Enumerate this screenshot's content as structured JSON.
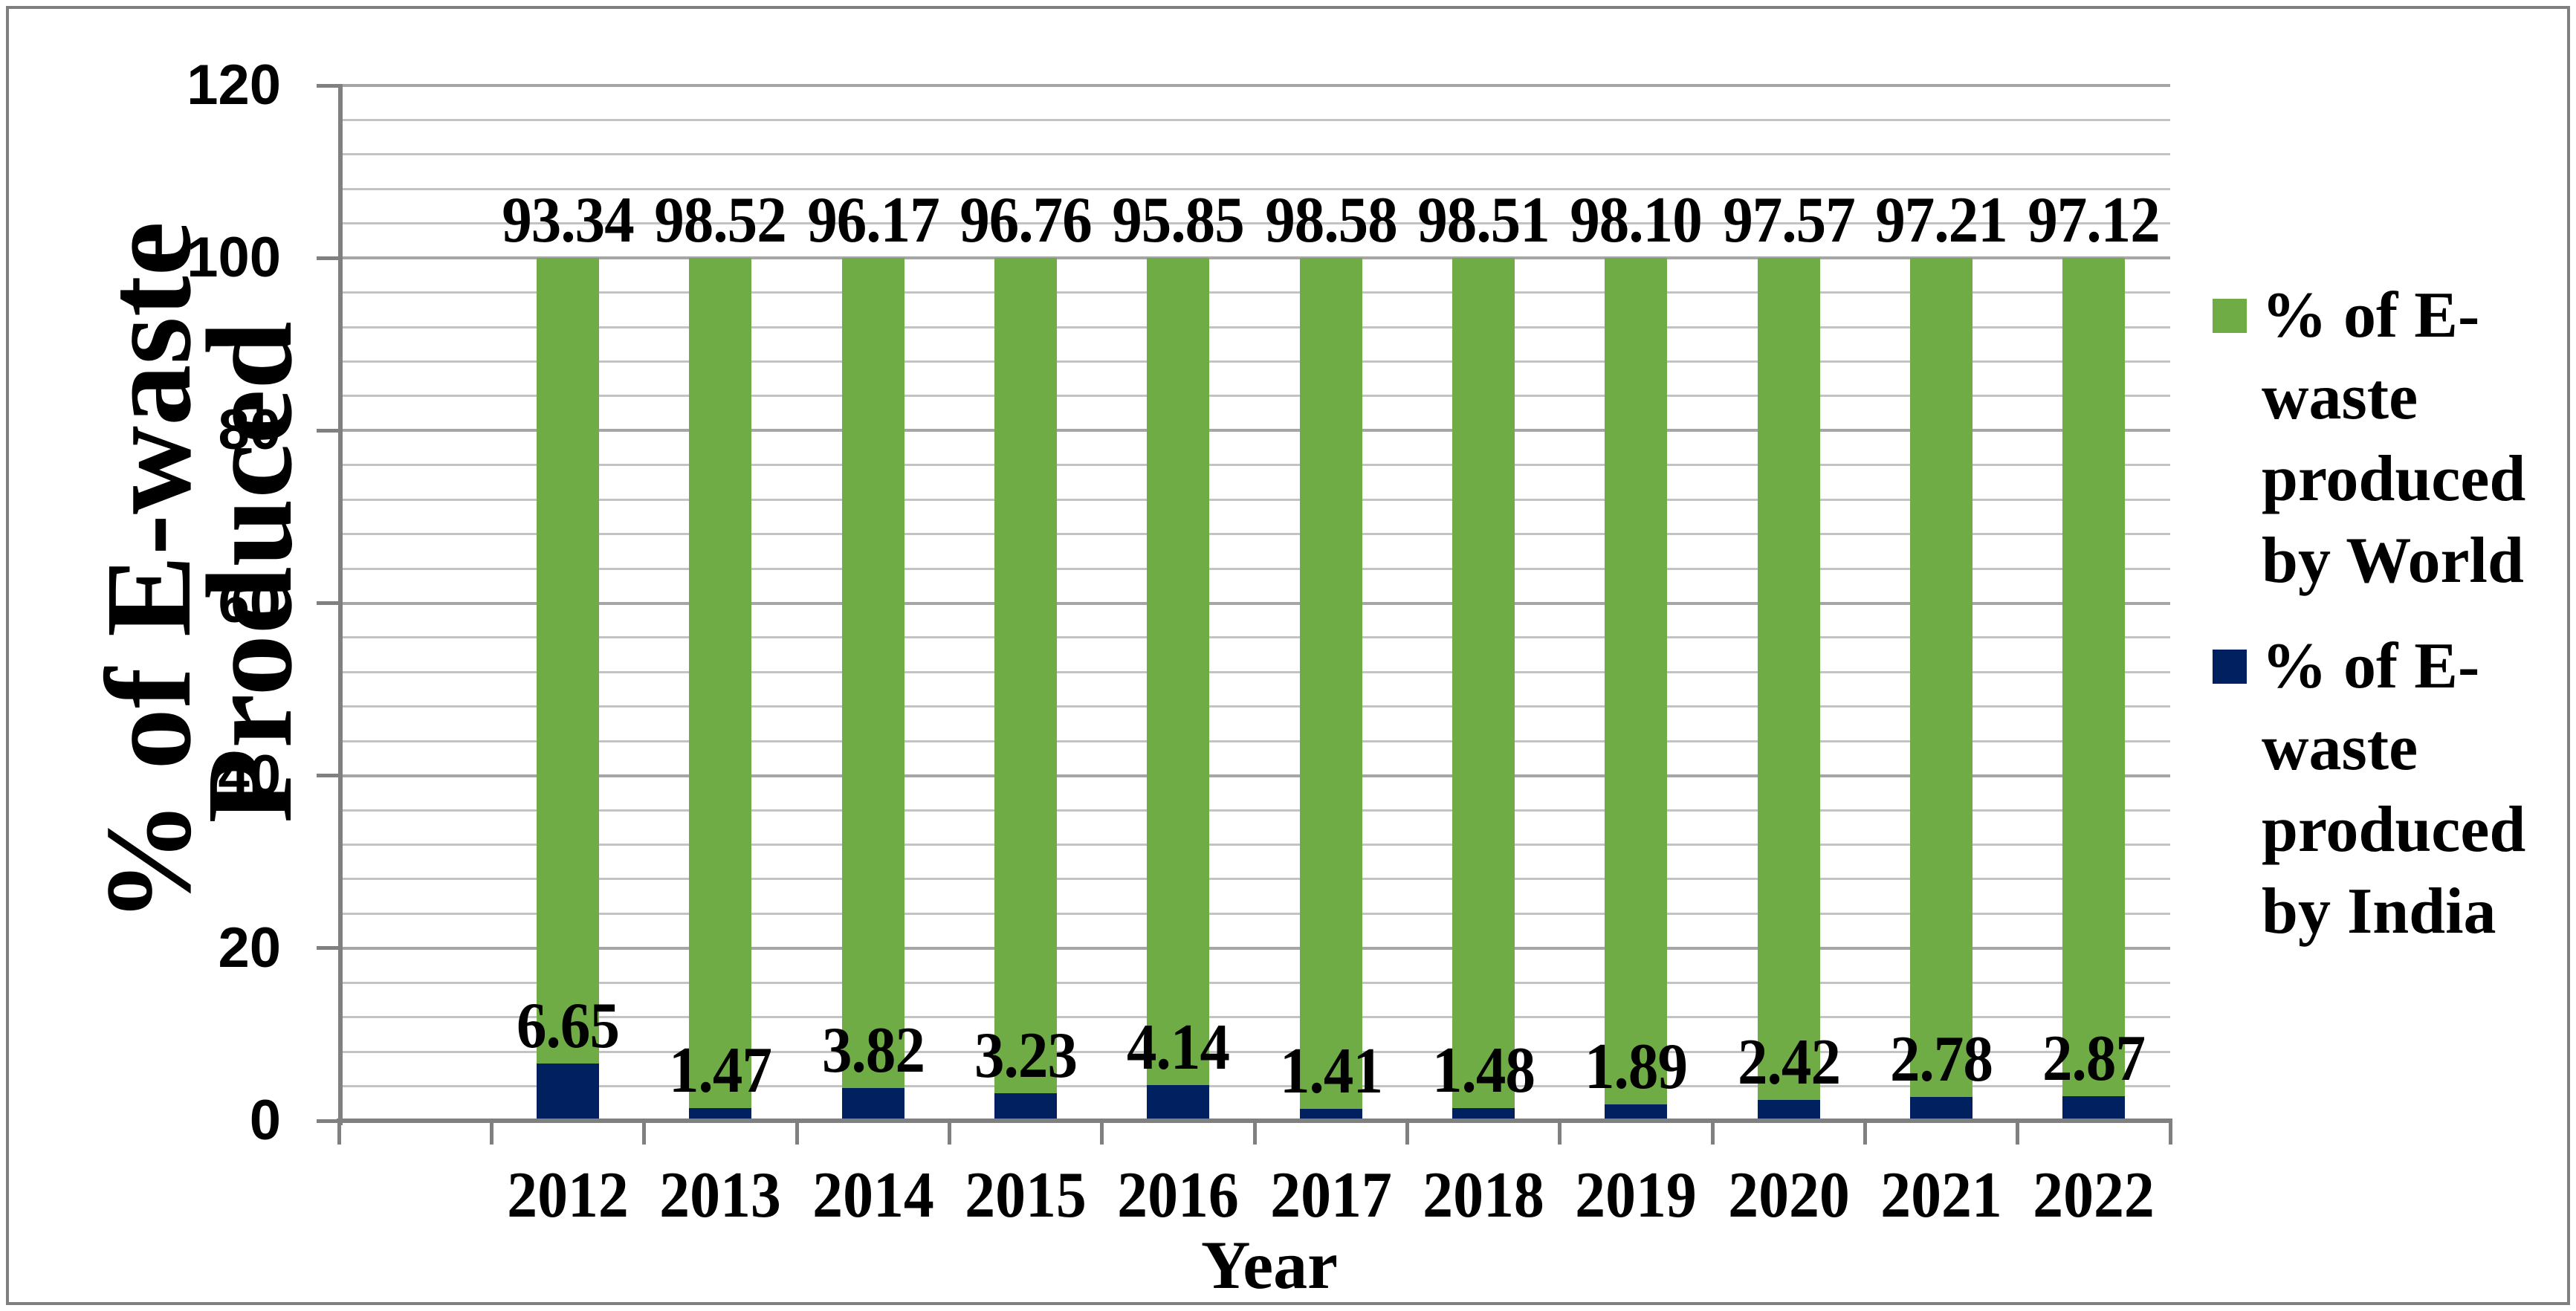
{
  "chart_data": {
    "type": "bar",
    "stacked": true,
    "categories": [
      "2012",
      "2013",
      "2014",
      "2015",
      "2016",
      "2017",
      "2018",
      "2019",
      "2020",
      "2021",
      "2022"
    ],
    "series": [
      {
        "name": "% of E-waste produced by India",
        "color": "#002060",
        "values": [
          6.65,
          1.47,
          3.82,
          3.23,
          4.14,
          1.41,
          1.48,
          1.89,
          2.42,
          2.78,
          2.87
        ],
        "labels": [
          "6.65",
          "1.47",
          "3.82",
          "3.23",
          "4.14",
          "1.41",
          "1.48",
          "1.89",
          "2.42",
          "2.78",
          "2.87"
        ]
      },
      {
        "name": "% of E-waste produced by World",
        "color": "#6FAC46",
        "values": [
          93.34,
          98.52,
          96.17,
          96.76,
          95.85,
          98.58,
          98.51,
          98.1,
          97.57,
          97.21,
          97.12
        ],
        "labels": [
          "93.34",
          "98.52",
          "96.17",
          "96.76",
          "95.85",
          "98.58",
          "98.51",
          "98.10",
          "97.57",
          "97.21",
          "97.12"
        ]
      }
    ],
    "stack_order_bottom_to_top": [
      "% of E-waste produced by India",
      "% of E-waste produced by World"
    ],
    "xlabel": "Year",
    "ylabel": "% of E-waste Produced",
    "ylabel_lines": [
      "% of E-waste",
      "Produced"
    ],
    "ylim": [
      0,
      120
    ],
    "y_major_unit": 20,
    "y_minor_unit": 4,
    "y_tick_labels": [
      "0",
      "20",
      "40",
      "60",
      "80",
      "100",
      "120"
    ],
    "grid": "horizontal major and minor gridlines on",
    "legend_position": "right",
    "legend": [
      {
        "series": "World",
        "color": "#6FAC46",
        "lines": [
          "% of E-",
          "waste",
          "produced",
          "by World"
        ]
      },
      {
        "series": "India",
        "color": "#002060",
        "lines": [
          "% of E-",
          "waste",
          "produced",
          "by India"
        ]
      }
    ]
  },
  "colors": {
    "world_green": "#6FAC46",
    "india_navy": "#002060",
    "gridline_minor": "#C3C3C3",
    "gridline_major": "#A6A6A6",
    "axis_line": "#808080",
    "chart_border": "#7F7F7F",
    "text": "#000000",
    "background": "#FFFFFF"
  }
}
